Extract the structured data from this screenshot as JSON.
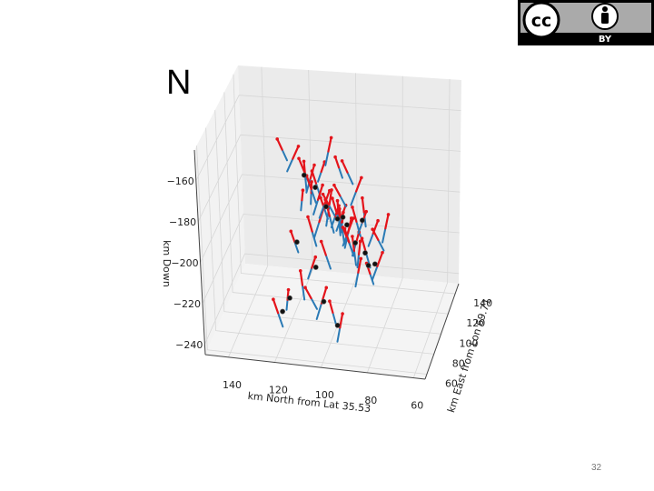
{
  "slide": {
    "panel_label": "N",
    "page_number": "32",
    "license_badge": {
      "icon": "cc-by-icon",
      "text": "BY",
      "bg": "#555555",
      "fg": "#ffffff"
    }
  },
  "chart_data": {
    "type": "scatter",
    "projection": "3d",
    "title": "",
    "xlabel": "km North from Lat 35.53",
    "ylabel": "km East from Lon 69.71",
    "zlabel": "km Down",
    "xlim": [
      55,
      150
    ],
    "ylim": [
      55,
      150
    ],
    "zlim": [
      -245,
      -145
    ],
    "x_ticks": [
      "140",
      "120",
      "100",
      "80",
      "60"
    ],
    "y_ticks": [
      "60",
      "80",
      "100",
      "120",
      "140"
    ],
    "z_ticks": [
      "−160",
      "−180",
      "−200",
      "−220",
      "−240"
    ],
    "grid": true,
    "pane_color": "#f2f2f2",
    "colors": {
      "vector_up": "#e4141b",
      "vector_down": "#2a7ab5",
      "event": "#111111"
    },
    "series": [
      {
        "values": [
          {
            "x": 120,
            "y": 92,
            "z": -158,
            "dx": 1.5,
            "dy": -2,
            "dz": 6
          },
          {
            "x": 116,
            "y": 94,
            "z": -163,
            "dx": -2,
            "dy": 3,
            "dz": 5
          },
          {
            "x": 112,
            "y": 98,
            "z": -171,
            "dx": 2,
            "dy": -1,
            "dz": 7
          },
          {
            "x": 110,
            "y": 100,
            "z": -175,
            "dx": -1.5,
            "dy": 2,
            "dz": 6
          },
          {
            "x": 108,
            "y": 102,
            "z": -178,
            "dx": 2,
            "dy": 2,
            "dz": 5
          },
          {
            "x": 106,
            "y": 104,
            "z": -173,
            "dx": -2,
            "dy": -2,
            "dz": 6
          },
          {
            "x": 113,
            "y": 104,
            "z": -176,
            "dx": 1,
            "dy": 3,
            "dz": 6
          },
          {
            "x": 109,
            "y": 96,
            "z": -180,
            "dx": -1,
            "dy": -3,
            "dz": 7
          },
          {
            "x": 111,
            "y": 106,
            "z": -183,
            "dx": 2,
            "dy": 1,
            "dz": 6
          },
          {
            "x": 107,
            "y": 100,
            "z": -185,
            "dx": -2,
            "dy": 1,
            "dz": 7
          },
          {
            "x": 104,
            "y": 98,
            "z": -188,
            "dx": 1,
            "dy": -2,
            "dz": 6
          },
          {
            "x": 103,
            "y": 103,
            "z": -190,
            "dx": -1,
            "dy": 2,
            "dz": 8
          },
          {
            "x": 102,
            "y": 99,
            "z": -192,
            "dx": 2,
            "dy": 2,
            "dz": 7
          },
          {
            "x": 100,
            "y": 101,
            "z": -193,
            "dx": -2,
            "dy": -1,
            "dz": 6
          },
          {
            "x": 99,
            "y": 104,
            "z": -195,
            "dx": 1,
            "dy": 3,
            "dz": 7
          },
          {
            "x": 104,
            "y": 108,
            "z": -191,
            "dx": 2,
            "dy": -2,
            "dz": 6
          },
          {
            "x": 106,
            "y": 96,
            "z": -194,
            "dx": -2,
            "dy": 2,
            "dz": 7
          },
          {
            "x": 97,
            "y": 100,
            "z": -197,
            "dx": 1,
            "dy": 1,
            "dz": 8
          },
          {
            "x": 98,
            "y": 106,
            "z": -198,
            "dx": -1,
            "dy": -2,
            "dz": 6
          },
          {
            "x": 101,
            "y": 110,
            "z": -196,
            "dx": 2,
            "dy": 1,
            "dz": 7
          },
          {
            "x": 95,
            "y": 103,
            "z": -201,
            "dx": -2,
            "dy": 2,
            "dz": 6
          },
          {
            "x": 94,
            "y": 98,
            "z": -203,
            "dx": 2,
            "dy": -1,
            "dz": 7
          },
          {
            "x": 96,
            "y": 108,
            "z": -204,
            "dx": -1,
            "dy": 3,
            "dz": 6
          },
          {
            "x": 93,
            "y": 112,
            "z": -200,
            "dx": 2,
            "dy": 2,
            "dz": 6
          },
          {
            "x": 92,
            "y": 104,
            "z": -207,
            "dx": -2,
            "dy": -2,
            "dz": 7
          },
          {
            "x": 91,
            "y": 95,
            "z": -206,
            "dx": 1,
            "dy": 2,
            "dz": 6
          },
          {
            "x": 90,
            "y": 100,
            "z": -210,
            "dx": -1,
            "dy": -1,
            "dz": 7
          },
          {
            "x": 88,
            "y": 106,
            "z": -212,
            "dx": 2,
            "dy": 2,
            "dz": 6
          },
          {
            "x": 87,
            "y": 118,
            "z": -208,
            "dx": -2,
            "dy": 1,
            "dz": 6
          },
          {
            "x": 86,
            "y": 124,
            "z": -214,
            "dx": 2,
            "dy": -2,
            "dz": 6
          },
          {
            "x": 89,
            "y": 92,
            "z": -215,
            "dx": -1,
            "dy": 2,
            "dz": 6
          },
          {
            "x": 85,
            "y": 98,
            "z": -218,
            "dx": 1,
            "dy": -2,
            "dz": 6
          },
          {
            "x": 84,
            "y": 110,
            "z": -220,
            "dx": -2,
            "dy": 2,
            "dz": 6
          },
          {
            "x": 102,
            "y": 88,
            "z": -206,
            "dx": 2,
            "dy": 1,
            "dz": 6
          },
          {
            "x": 108,
            "y": 86,
            "z": -212,
            "dx": -2,
            "dy": -1,
            "dz": 6
          },
          {
            "x": 112,
            "y": 84,
            "z": -220,
            "dx": 1,
            "dy": 2,
            "dz": 6
          },
          {
            "x": 118,
            "y": 80,
            "z": -226,
            "dx": -1,
            "dy": -2,
            "dz": 6
          },
          {
            "x": 122,
            "y": 78,
            "z": -232,
            "dx": 2,
            "dy": 1,
            "dz": 6
          },
          {
            "x": 104,
            "y": 84,
            "z": -228,
            "dx": -2,
            "dy": 2,
            "dz": 7
          },
          {
            "x": 100,
            "y": 88,
            "z": -234,
            "dx": 1,
            "dy": -1,
            "dz": 6
          },
          {
            "x": 96,
            "y": 82,
            "z": -238,
            "dx": -1,
            "dy": 2,
            "dz": 6
          },
          {
            "x": 110,
            "y": 92,
            "z": -230,
            "dx": 2,
            "dy": -2,
            "dz": 6
          },
          {
            "x": 94,
            "y": 118,
            "z": -188,
            "dx": -2,
            "dy": 2,
            "dz": 6
          },
          {
            "x": 98,
            "y": 120,
            "z": -180,
            "dx": 2,
            "dy": -1,
            "dz": 6
          },
          {
            "x": 105,
            "y": 115,
            "z": -168,
            "dx": -1,
            "dy": 2,
            "dz": 6
          },
          {
            "x": 100,
            "y": 112,
            "z": -174,
            "dx": 1,
            "dy": -2,
            "dz": 6
          },
          {
            "x": 96,
            "y": 94,
            "z": -190,
            "dx": -2,
            "dy": 1,
            "dz": 6
          },
          {
            "x": 108,
            "y": 90,
            "z": -196,
            "dx": 2,
            "dy": 2,
            "dz": 6
          },
          {
            "x": 114,
            "y": 100,
            "z": -186,
            "dx": -1,
            "dy": -2,
            "dz": 6
          },
          {
            "x": 90,
            "y": 114,
            "z": -196,
            "dx": 1,
            "dy": 2,
            "dz": 6
          },
          {
            "x": 92,
            "y": 120,
            "z": -204,
            "dx": -2,
            "dy": -1,
            "dz": 6
          },
          {
            "x": 97,
            "y": 115,
            "z": -212,
            "dx": 2,
            "dy": 1,
            "dz": 6
          },
          {
            "x": 82,
            "y": 120,
            "z": -206,
            "dx": -1,
            "dy": 2,
            "dz": 6
          },
          {
            "x": 115,
            "y": 86,
            "z": -200,
            "dx": 1,
            "dy": -2,
            "dz": 6
          },
          {
            "x": 103,
            "y": 94,
            "z": -184,
            "dx": -2,
            "dy": 2,
            "dz": 6
          },
          {
            "x": 99,
            "y": 108,
            "z": -186,
            "dx": 2,
            "dy": -2,
            "dz": 6
          }
        ]
      }
    ],
    "events": [
      {
        "x": 112,
        "y": 97,
        "z": -172
      },
      {
        "x": 104,
        "y": 102,
        "z": -189
      },
      {
        "x": 99,
        "y": 101,
        "z": -194
      },
      {
        "x": 96,
        "y": 106,
        "z": -199
      },
      {
        "x": 92,
        "y": 103,
        "z": -206
      },
      {
        "x": 88,
        "y": 104,
        "z": -211
      },
      {
        "x": 106,
        "y": 85,
        "z": -211
      },
      {
        "x": 117,
        "y": 80,
        "z": -225
      },
      {
        "x": 120,
        "y": 78,
        "z": -231
      },
      {
        "x": 103,
        "y": 84,
        "z": -227
      },
      {
        "x": 85,
        "y": 110,
        "z": -219
      },
      {
        "x": 86,
        "y": 100,
        "z": -215
      },
      {
        "x": 108,
        "y": 100,
        "z": -179
      },
      {
        "x": 95,
        "y": 93,
        "z": -189
      },
      {
        "x": 97,
        "y": 82,
        "z": -237
      },
      {
        "x": 92,
        "y": 120,
        "z": -203
      },
      {
        "x": 114,
        "y": 86,
        "z": -200
      }
    ]
  }
}
